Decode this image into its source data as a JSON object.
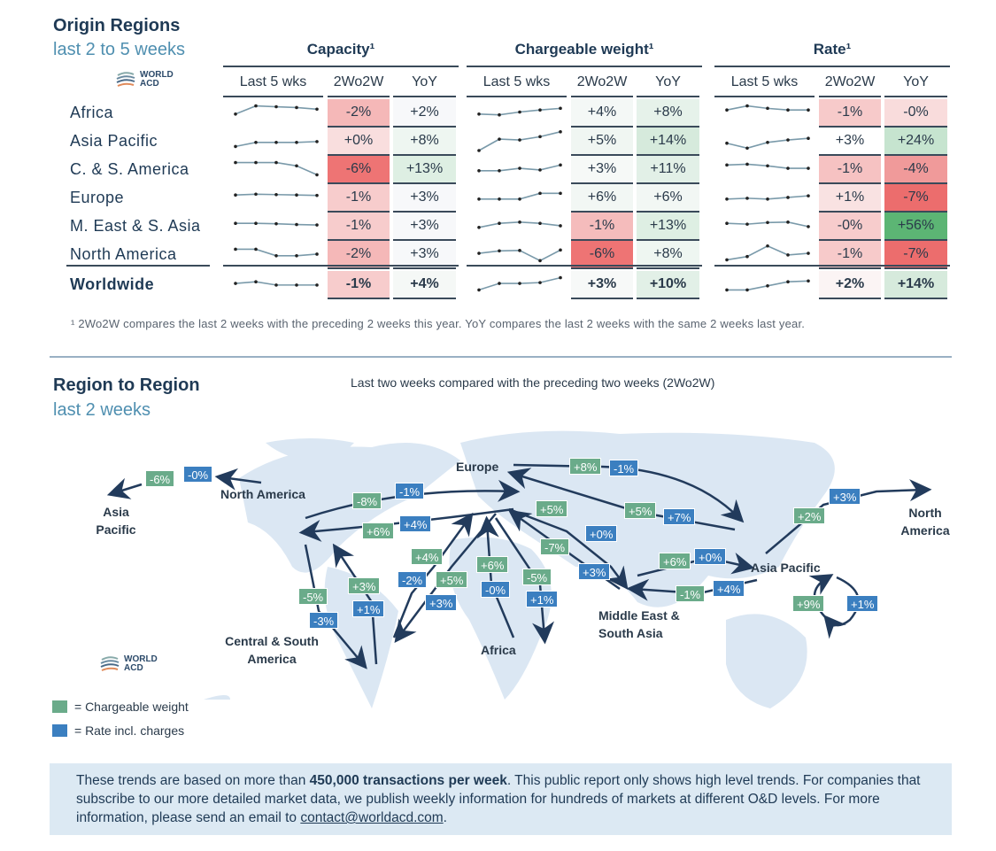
{
  "header": {
    "title": "Origin Regions",
    "subtitle": "last 2 to 5 weeks",
    "logo": "WORLD ACD"
  },
  "colors": {
    "neg_strong": "#ef7a7a",
    "neg_mid": "#f5b5b5",
    "neg_light": "#f9d7d7",
    "neutral": "#f7f8fa",
    "pos_light": "#e6f2ea",
    "pos_mid": "#cde6d6",
    "pos_strong": "#5cb574"
  },
  "chart_data": {
    "type": "table",
    "groups": [
      "Capacity¹",
      "Chargeable weight¹",
      "Rate¹"
    ],
    "columns": [
      "Last 5 wks",
      "2Wo2W",
      "YoY"
    ],
    "rows": [
      {
        "region": "Africa",
        "cap": {
          "spark": [
            2,
            4,
            3.8,
            3.6,
            3.2
          ],
          "w2": "-2%",
          "w2c": "#f5b8b8",
          "yoy": "+2%",
          "yc": "#f7f8fa"
        },
        "cw": {
          "spark": [
            2,
            1.8,
            2.5,
            3,
            3.4
          ],
          "w2": "+4%",
          "w2c": "#f4f8f6",
          "yoy": "+8%",
          "yc": "#e6f2ea"
        },
        "rate": {
          "spark": [
            3,
            4,
            3.4,
            3,
            3
          ],
          "w2": "-1%",
          "w2c": "#f7caca",
          "yoy": "-0%",
          "yc": "#f9dcdc"
        }
      },
      {
        "region": "Asia Pacific",
        "cap": {
          "spark": [
            1,
            2,
            2,
            2,
            2.2
          ],
          "w2": "+0%",
          "w2c": "#f9dede",
          "yoy": "+8%",
          "yc": "#eef6f1"
        },
        "cw": {
          "spark": [
            0,
            2.8,
            2.6,
            3.4,
            4.6
          ],
          "w2": "+5%",
          "w2c": "#f0f6f2",
          "yoy": "+14%",
          "yc": "#d6eadc"
        },
        "rate": {
          "spark": [
            1.8,
            0.6,
            2,
            2.6,
            3
          ],
          "w2": "+3%",
          "w2c": "#ffffff",
          "yoy": "+24%",
          "yc": "#c6e4cf"
        }
      },
      {
        "region": "C. & S. America",
        "cap": {
          "spark": [
            4,
            4,
            4,
            3.2,
            1
          ],
          "w2": "-6%",
          "w2c": "#ee7474",
          "yoy": "+13%",
          "yc": "#deefe3"
        },
        "cw": {
          "spark": [
            2,
            2,
            2.6,
            2.2,
            3.4
          ],
          "w2": "+3%",
          "w2c": "#f6f9f7",
          "yoy": "+11%",
          "yc": "#e2f0e7"
        },
        "rate": {
          "spark": [
            3.4,
            3.6,
            3.2,
            2.6,
            2.6
          ],
          "w2": "-1%",
          "w2c": "#f6c2c2",
          "yoy": "-4%",
          "yc": "#f09a9a"
        }
      },
      {
        "region": "Europe",
        "cap": {
          "spark": [
            3,
            3.2,
            3.1,
            3,
            2.9
          ],
          "w2": "-1%",
          "w2c": "#f7cccc",
          "yoy": "+3%",
          "yc": "#f7f8fa"
        },
        "cw": {
          "spark": [
            2,
            2,
            2,
            3.4,
            3.4
          ],
          "w2": "+6%",
          "w2c": "#f2f7f4",
          "yoy": "+6%",
          "yc": "#f2f7f4"
        },
        "rate": {
          "spark": [
            2,
            2.2,
            2,
            2.4,
            2.8
          ],
          "w2": "+1%",
          "w2c": "#f9e2e2",
          "yoy": "-7%",
          "yc": "#ec6d6d"
        }
      },
      {
        "region": "M. East & S. Asia",
        "cap": {
          "spark": [
            3,
            3,
            2.9,
            2.7,
            2.6
          ],
          "w2": "-1%",
          "w2c": "#f7cccc",
          "yoy": "+3%",
          "yc": "#f7f8fa"
        },
        "cw": {
          "spark": [
            2,
            3,
            3.3,
            3,
            2.4
          ],
          "w2": "-1%",
          "w2c": "#f5bcbc",
          "yoy": "+13%",
          "yc": "#deefe3"
        },
        "rate": {
          "spark": [
            3,
            2.8,
            3.2,
            3.3,
            2.2
          ],
          "w2": "-0%",
          "w2c": "#f7cccc",
          "yoy": "+56%",
          "yc": "#5cb574"
        }
      },
      {
        "region": "North America",
        "cap": {
          "spark": [
            3.6,
            3.6,
            2,
            2,
            2.4
          ],
          "w2": "-2%",
          "w2c": "#f5b8b8",
          "yoy": "+3%",
          "yc": "#f7f8fa"
        },
        "cw": {
          "spark": [
            2.6,
            3.2,
            3.3,
            0.8,
            3.4
          ],
          "w2": "-6%",
          "w2c": "#ee7474",
          "yoy": "+8%",
          "yc": "#eef6f1"
        },
        "rate": {
          "spark": [
            1,
            1.8,
            4.4,
            2.2,
            2.6
          ],
          "w2": "-1%",
          "w2c": "#f7caca",
          "yoy": "-7%",
          "yc": "#ec6d6d"
        }
      },
      {
        "region": "Worldwide",
        "bold": true,
        "cap": {
          "spark": [
            2.6,
            3,
            2.2,
            2.2,
            2.2
          ],
          "w2": "-1%",
          "w2c": "#f7cccc",
          "yoy": "+4%",
          "yc": "#f5f8f6"
        },
        "cw": {
          "spark": [
            1,
            2.6,
            2.6,
            2.8,
            4
          ],
          "w2": "+3%",
          "w2c": "#f7f9f8",
          "yoy": "+10%",
          "yc": "#e2f0e7"
        },
        "rate": {
          "spark": [
            1,
            1,
            2,
            3,
            3.2
          ],
          "w2": "+2%",
          "w2c": "#fbf4f4",
          "yoy": "+14%",
          "yc": "#d6eadc"
        }
      }
    ]
  },
  "footnote": "¹ 2Wo2W compares the last 2 weeks with the preceding 2 weeks this year. YoY compares the last 2 weeks with the same 2 weeks last year.",
  "map": {
    "title": "Region to Region",
    "subtitle": "last 2 weeks",
    "caption": "Last two weeks compared with the preceding two weeks (2Wo2W)",
    "regions": {
      "europe": "Europe",
      "na": "North America",
      "ap_left": "Asia Pacific",
      "csa": "Central & South America",
      "africa": "Africa",
      "mesa": "Middle East & South Asia",
      "ap": "Asia Pacific",
      "na_right": "North America"
    },
    "flows": [
      {
        "route": "North America → Asia Pacific",
        "weight": "-6%",
        "rate": "-0%"
      },
      {
        "route": "North America → Europe",
        "weight": "-8%",
        "rate": "-1%"
      },
      {
        "route": "Europe → North America",
        "weight": "+6%",
        "rate": "+4%"
      },
      {
        "route": "North America → Central & South America",
        "weight": "-5%",
        "rate": "-3%"
      },
      {
        "route": "Central & South America → North America",
        "weight": "+3%",
        "rate": "+1%"
      },
      {
        "route": "Central & South America → Europe",
        "weight": "+4%",
        "rate": "-2%"
      },
      {
        "route": "Europe → Central & South America",
        "weight": "+5%",
        "rate": "+3%"
      },
      {
        "route": "Africa → Europe",
        "weight": "+6%",
        "rate": "-0%"
      },
      {
        "route": "Europe → Africa",
        "weight": "-5%",
        "rate": "+1%"
      },
      {
        "route": "Europe → Middle East & South Asia",
        "weight": "+5%",
        "rate": "+0%"
      },
      {
        "route": "Middle East & South Asia → Europe",
        "weight": "-7%",
        "rate": "+3%"
      },
      {
        "route": "Europe → Asia Pacific",
        "weight": "+8%",
        "rate": "-1%"
      },
      {
        "route": "Asia Pacific → Europe",
        "weight": "+5%",
        "rate": "+7%"
      },
      {
        "route": "Middle East & South Asia → Asia Pacific",
        "weight": "+6%",
        "rate": "+0%"
      },
      {
        "route": "Asia Pacific → Middle East & South Asia",
        "weight": "-1%",
        "rate": "+4%"
      },
      {
        "route": "Asia Pacific → North America",
        "weight": "+2%",
        "rate": "+3%"
      },
      {
        "route": "Asia Pacific → Asia Pacific",
        "weight": "+9%",
        "rate": "+1%"
      }
    ],
    "legend": {
      "weight": "= Chargeable weight",
      "rate": "= Rate incl. charges",
      "weight_color": "#6aab8a",
      "rate_color": "#3b7fc0"
    }
  },
  "note": {
    "pre": "These trends are based on more than ",
    "bold": "450,000 transactions per week",
    "post": ". This public report only shows high level trends. For companies that subscribe to our more detailed market data, we publish weekly information for hundreds of markets at different O&D levels. For more information, please send an email to ",
    "email": "contact@worldacd.com",
    "end": "."
  }
}
